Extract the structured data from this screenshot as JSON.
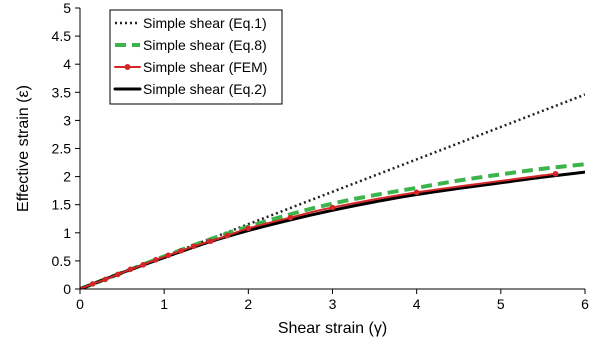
{
  "chart_data": {
    "type": "line",
    "xlabel": "Shear strain (γ)",
    "ylabel": "Effective strain (ε)",
    "xlim": [
      0,
      6
    ],
    "ylim": [
      0,
      5
    ],
    "xticks": [
      "0",
      "1",
      "2",
      "3",
      "4",
      "5",
      "6"
    ],
    "yticks": [
      "0",
      "0.5",
      "1",
      "1.5",
      "2",
      "2.5",
      "3",
      "3.5",
      "4",
      "4.5",
      "5"
    ],
    "grid": false,
    "legend_position": "top-left",
    "series": [
      {
        "name": "Simple shear (Eq.1)",
        "color": "#222222",
        "style": "dotted",
        "x": [
          0,
          6
        ],
        "y": [
          0,
          3.46
        ]
      },
      {
        "name": "Simple shear (Eq.8)",
        "color": "#3cb44b",
        "style": "dashed",
        "x": [
          0,
          0.5,
          1,
          1.5,
          2,
          2.5,
          3,
          3.5,
          4,
          4.5,
          5,
          5.5,
          6
        ],
        "y": [
          0,
          0.29,
          0.58,
          0.86,
          1.11,
          1.33,
          1.52,
          1.67,
          1.8,
          1.93,
          2.04,
          2.14,
          2.22
        ]
      },
      {
        "name": "Simple shear (FEM)",
        "color": "#d62728",
        "style": "solid-markers",
        "x": [
          0,
          0.15,
          0.3,
          0.45,
          0.6,
          0.75,
          0.9,
          1.05,
          1.2,
          1.35,
          1.55,
          1.75,
          2.0,
          2.5,
          3.0,
          4.0,
          5.65
        ],
        "y": [
          0,
          0.09,
          0.17,
          0.26,
          0.35,
          0.43,
          0.52,
          0.6,
          0.68,
          0.76,
          0.85,
          0.95,
          1.08,
          1.27,
          1.45,
          1.72,
          2.05
        ]
      },
      {
        "name": "Simple shear (Eq.2)",
        "color": "#000000",
        "style": "solid",
        "x": [
          0,
          0.5,
          1,
          1.5,
          2,
          2.5,
          3,
          3.5,
          4,
          4.5,
          5,
          5.5,
          6
        ],
        "y": [
          0,
          0.29,
          0.56,
          0.82,
          1.04,
          1.23,
          1.4,
          1.55,
          1.68,
          1.79,
          1.89,
          1.99,
          2.08
        ]
      }
    ]
  }
}
